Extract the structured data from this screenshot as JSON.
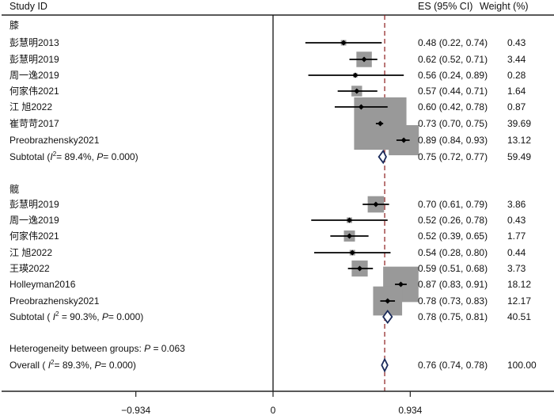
{
  "chart_data": {
    "type": "forest",
    "headers": {
      "study": "Study ID",
      "es": "ES (95% CI)",
      "weight": "Weight (%)"
    },
    "xaxis": {
      "ticks": [
        -0.934,
        0,
        0.934
      ],
      "tick_labels": [
        "−0.934",
        "0",
        "0.934"
      ],
      "range": [
        -1.86,
        1.9
      ]
    },
    "null_line": 0,
    "overall_line": 0.76,
    "colors": {
      "box": "#999999",
      "diamond_stroke": "#1a2a5a",
      "overall_line": "#8b1a1a",
      "line": "#000000"
    },
    "groups": [
      {
        "name": "膝",
        "studies": [
          {
            "label": "彭慧明2013",
            "es": 0.48,
            "lo": 0.22,
            "hi": 0.74,
            "es_text": "0.48 (0.22, 0.74)",
            "weight": 0.43,
            "weight_text": "0.43"
          },
          {
            "label": "彭慧明2019",
            "es": 0.62,
            "lo": 0.52,
            "hi": 0.71,
            "es_text": "0.62 (0.52, 0.71)",
            "weight": 3.44,
            "weight_text": "3.44"
          },
          {
            "label": "周一逸2019",
            "es": 0.56,
            "lo": 0.24,
            "hi": 0.89,
            "es_text": "0.56 (0.24, 0.89)",
            "weight": 0.28,
            "weight_text": "0.28"
          },
          {
            "label": "何家伟2021",
            "es": 0.57,
            "lo": 0.44,
            "hi": 0.71,
            "es_text": "0.57 (0.44, 0.71)",
            "weight": 1.64,
            "weight_text": "1.64"
          },
          {
            "label": "江 旭2022",
            "es": 0.6,
            "lo": 0.42,
            "hi": 0.78,
            "es_text": "0.60 (0.42, 0.78)",
            "weight": 0.87,
            "weight_text": "0.87"
          },
          {
            "label": "崔苛苛2017",
            "es": 0.73,
            "lo": 0.7,
            "hi": 0.75,
            "es_text": "0.73 (0.70, 0.75)",
            "weight": 39.69,
            "weight_text": "39.69"
          },
          {
            "label": "Preobrazhensky2021",
            "es": 0.89,
            "lo": 0.84,
            "hi": 0.93,
            "es_text": "0.89 (0.84, 0.93)",
            "weight": 13.12,
            "weight_text": "13.12"
          }
        ],
        "subtotal": {
          "prefix": "Subtotal  (",
          "i2_label": "I",
          "i2_rest": "= 89.4%, ",
          "p_label": "P",
          "p_rest": "= 0.000)",
          "es": 0.75,
          "lo": 0.72,
          "hi": 0.77,
          "es_text": "0.75 (0.72, 0.77)",
          "weight_text": "59.49"
        }
      },
      {
        "name": "髋",
        "studies": [
          {
            "label": "彭慧明2019",
            "es": 0.7,
            "lo": 0.61,
            "hi": 0.79,
            "es_text": "0.70 (0.61, 0.79)",
            "weight": 3.86,
            "weight_text": "3.86"
          },
          {
            "label": "周一逸2019",
            "es": 0.52,
            "lo": 0.26,
            "hi": 0.78,
            "es_text": "0.52 (0.26, 0.78)",
            "weight": 0.43,
            "weight_text": "0.43"
          },
          {
            "label": "何家伟2021",
            "es": 0.52,
            "lo": 0.39,
            "hi": 0.65,
            "es_text": "0.52 (0.39, 0.65)",
            "weight": 1.77,
            "weight_text": "1.77"
          },
          {
            "label": "江 旭2022",
            "es": 0.54,
            "lo": 0.28,
            "hi": 0.8,
            "es_text": "0.54 (0.28, 0.80)",
            "weight": 0.44,
            "weight_text": "0.44"
          },
          {
            "label": "王瑛2022",
            "es": 0.59,
            "lo": 0.51,
            "hi": 0.68,
            "es_text": "0.59 (0.51, 0.68)",
            "weight": 3.73,
            "weight_text": "3.73"
          },
          {
            "label": "Holleyman2016",
            "es": 0.87,
            "lo": 0.83,
            "hi": 0.91,
            "es_text": "0.87 (0.83, 0.91)",
            "weight": 18.12,
            "weight_text": "18.12"
          },
          {
            "label": "Preobrazhensky2021",
            "es": 0.78,
            "lo": 0.73,
            "hi": 0.83,
            "es_text": "0.78 (0.73, 0.83)",
            "weight": 12.17,
            "weight_text": "12.17"
          }
        ],
        "subtotal": {
          "prefix": "Subtotal  ( ",
          "i2_label": "I",
          "i2_rest": " = 90.3%, ",
          "p_label": "P",
          "p_rest": "= 0.000)",
          "es": 0.78,
          "lo": 0.75,
          "hi": 0.81,
          "es_text": "0.78 (0.75, 0.81)",
          "weight_text": "40.51"
        }
      }
    ],
    "heterogeneity": {
      "prefix": "Heterogeneity between groups: ",
      "p_label": "P",
      "p_rest": " = 0.063"
    },
    "overall": {
      "prefix": "Overall  ( ",
      "i2_label": "I",
      "i2_rest": "= 89.3%, ",
      "p_label": "P",
      "p_rest": "= 0.000)",
      "es": 0.76,
      "lo": 0.74,
      "hi": 0.78,
      "es_text": "0.76 (0.74, 0.78)",
      "weight_text": "100.00"
    }
  }
}
